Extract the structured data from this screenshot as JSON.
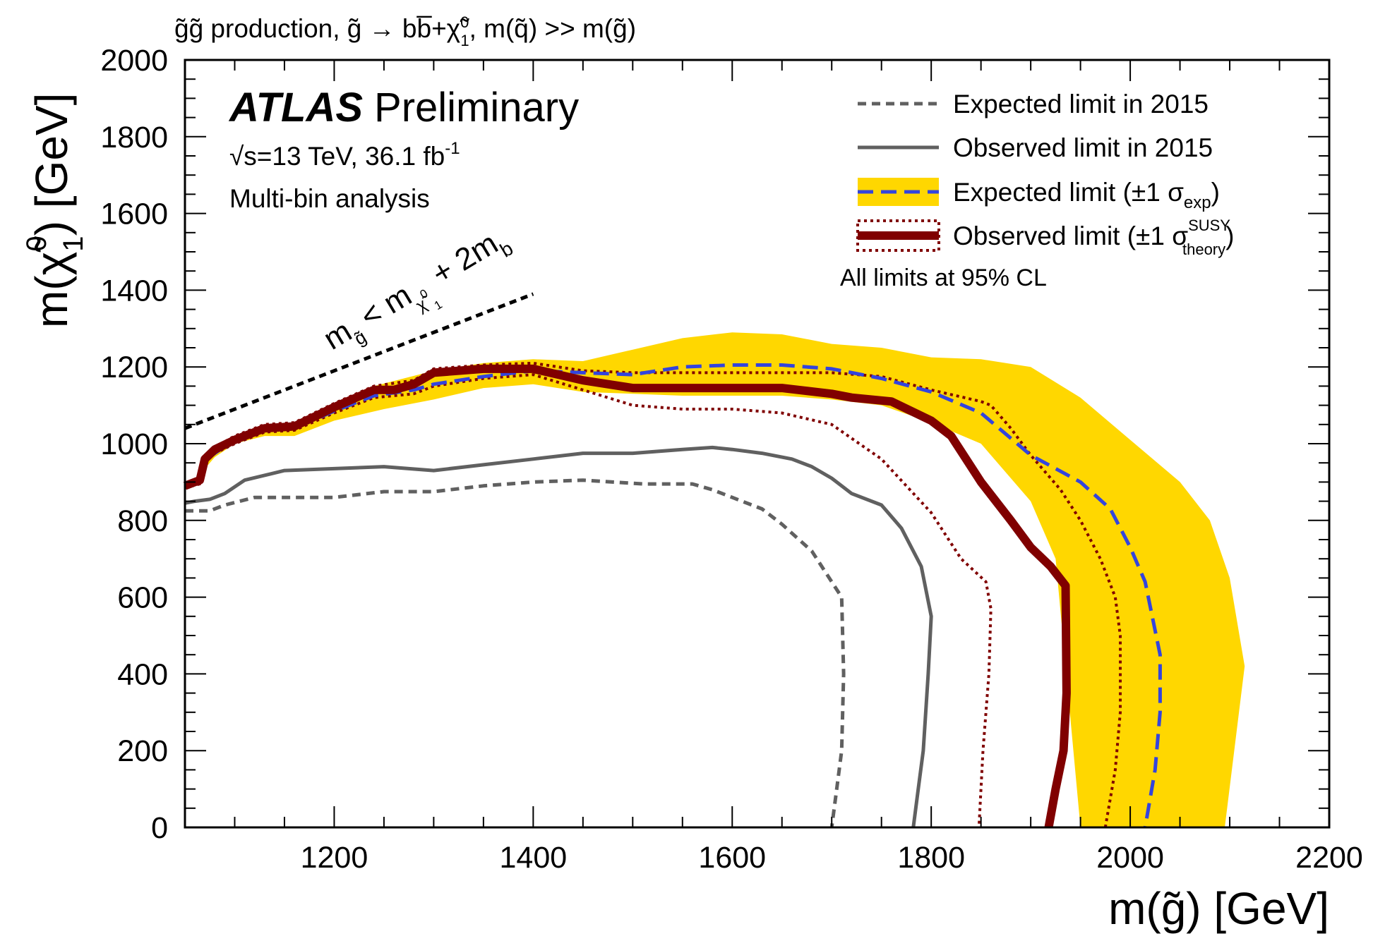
{
  "chart_data": {
    "type": "line",
    "header": {
      "pre": "g̃g̃  production, g̃ → bb̅+χ̃",
      "chi_sub": "1",
      "chi_sup": "0",
      "post": ", m(q̃) >> m(g̃)"
    },
    "experiment": "ATLAS",
    "status": "Preliminary",
    "energy_main": "√s=13 TeV, 36.1 fb",
    "energy_sup": "-1",
    "analysis": "Multi-bin analysis",
    "xlabel": "m(g̃) [GeV]",
    "ylabel": {
      "main": "m(χ̃",
      "sub": "1",
      "sup": "0",
      "tail": ") [GeV]"
    },
    "xlim": [
      1050,
      2200
    ],
    "ylim": [
      0,
      2000
    ],
    "x_ticks": [
      1200,
      1400,
      1600,
      1800,
      2000,
      2200
    ],
    "y_ticks": [
      0,
      200,
      400,
      600,
      800,
      1000,
      1200,
      1400,
      1600,
      1800,
      2000
    ],
    "kinematic": {
      "label": {
        "m": "m",
        "g": "g̃",
        "lt": "< m",
        "chi": "χ̃",
        "chi_sup": "0",
        "chi_sub": "1",
        "tail": "+ 2m",
        "b": "b"
      },
      "line": {
        "x": [
          1050,
          1400
        ],
        "y": [
          1040,
          1390
        ]
      }
    },
    "legend": {
      "items": [
        {
          "label": "Expected limit in 2015"
        },
        {
          "label": "Observed limit in 2015"
        },
        {
          "label": "Expected limit (±1 σ",
          "sub": "exp",
          "tail": ")"
        },
        {
          "label": "Observed limit (±1 σ",
          "sup": "SUSY",
          "sub": "theory",
          "tail": ")"
        }
      ],
      "note": "All limits at 95% CL",
      "position": "top-right"
    },
    "colors": {
      "band": "#ffd700",
      "expected": "#3344dd",
      "observed": "#800000",
      "obs_2015": "#606060",
      "exp_2015": "#606060",
      "kinematic": "#000000"
    },
    "series": [
      {
        "name": "Expected limit band (±1 σexp)",
        "type": "band",
        "upper": {
          "x": [
            1050,
            1065,
            1070,
            1080,
            1100,
            1130,
            1160,
            1200,
            1240,
            1300,
            1350,
            1400,
            1450,
            1500,
            1550,
            1600,
            1650,
            1700,
            1750,
            1800,
            1850,
            1900,
            1950,
            2000,
            2050,
            2080,
            2100,
            2115
          ],
          "y": [
            895,
            905,
            955,
            980,
            1010,
            1045,
            1050,
            1105,
            1150,
            1190,
            1210,
            1220,
            1215,
            1245,
            1275,
            1290,
            1285,
            1260,
            1250,
            1225,
            1220,
            1200,
            1120,
            1010,
            900,
            800,
            650,
            420
          ]
        },
        "lower": {
          "x": [
            2095,
            2050,
            2000,
            1950,
            1935,
            1925,
            1900,
            1850,
            1800,
            1750,
            1700,
            1650,
            1600,
            1550,
            1500,
            1450,
            1400,
            1350,
            1300,
            1250,
            1200,
            1160,
            1130,
            1100,
            1080,
            1070,
            1065,
            1050
          ],
          "y": [
            0,
            0,
            0,
            0,
            420,
            700,
            850,
            1000,
            1055,
            1100,
            1115,
            1125,
            1125,
            1125,
            1130,
            1135,
            1155,
            1145,
            1115,
            1090,
            1060,
            1020,
            1020,
            1000,
            965,
            935,
            895,
            880
          ]
        }
      },
      {
        "name": "Expected limit",
        "type": "line",
        "x": [
          1050,
          1065,
          1070,
          1080,
          1100,
          1130,
          1160,
          1200,
          1240,
          1280,
          1300,
          1350,
          1400,
          1450,
          1500,
          1550,
          1600,
          1650,
          1700,
          1750,
          1800,
          1850,
          1900,
          1950,
          1980,
          2000,
          2015,
          2030,
          2030,
          2025,
          2015
        ],
        "y": [
          890,
          900,
          955,
          975,
          1010,
          1035,
          1040,
          1085,
          1125,
          1140,
          1155,
          1175,
          1190,
          1185,
          1180,
          1200,
          1205,
          1205,
          1195,
          1170,
          1135,
          1080,
          970,
          900,
          830,
          730,
          640,
          450,
          300,
          150,
          0
        ]
      },
      {
        "name": "Observed limit",
        "type": "line",
        "x": [
          1050,
          1065,
          1070,
          1080,
          1100,
          1130,
          1160,
          1200,
          1240,
          1260,
          1280,
          1300,
          1350,
          1400,
          1450,
          1500,
          1550,
          1600,
          1650,
          1700,
          1720,
          1760,
          1800,
          1820,
          1850,
          1880,
          1900,
          1920,
          1935,
          1936,
          1933,
          1925,
          1918
        ],
        "y": [
          890,
          905,
          960,
          985,
          1010,
          1040,
          1045,
          1095,
          1140,
          1140,
          1155,
          1185,
          1195,
          1195,
          1165,
          1145,
          1145,
          1145,
          1145,
          1130,
          1120,
          1110,
          1060,
          1020,
          900,
          800,
          730,
          680,
          630,
          350,
          200,
          100,
          0
        ]
      },
      {
        "name": "Observed limit +1σ theory",
        "type": "line",
        "x": [
          1050,
          1065,
          1070,
          1080,
          1100,
          1130,
          1160,
          1200,
          1240,
          1280,
          1300,
          1350,
          1400,
          1450,
          1500,
          1550,
          1600,
          1650,
          1700,
          1750,
          1800,
          1850,
          1860,
          1880,
          1900,
          1930,
          1950,
          1970,
          1985,
          1990,
          1990,
          1985,
          1975
        ],
        "y": [
          895,
          910,
          965,
          990,
          1020,
          1050,
          1055,
          1105,
          1150,
          1165,
          1195,
          1205,
          1210,
          1190,
          1185,
          1185,
          1185,
          1185,
          1185,
          1175,
          1140,
          1110,
          1100,
          1040,
          970,
          880,
          800,
          700,
          600,
          500,
          300,
          150,
          0
        ]
      },
      {
        "name": "Observed limit -1σ theory",
        "type": "line",
        "x": [
          1050,
          1065,
          1070,
          1080,
          1100,
          1130,
          1160,
          1200,
          1240,
          1280,
          1300,
          1350,
          1400,
          1450,
          1500,
          1550,
          1600,
          1650,
          1700,
          1750,
          1800,
          1830,
          1855,
          1860,
          1858,
          1852,
          1848
        ],
        "y": [
          885,
          895,
          950,
          975,
          1000,
          1030,
          1035,
          1080,
          1120,
          1130,
          1150,
          1170,
          1180,
          1140,
          1100,
          1090,
          1090,
          1080,
          1050,
          960,
          820,
          700,
          640,
          570,
          400,
          200,
          0
        ]
      },
      {
        "name": "Observed limit in 2015",
        "type": "line",
        "x": [
          1050,
          1060,
          1075,
          1090,
          1110,
          1150,
          1200,
          1250,
          1300,
          1350,
          1400,
          1450,
          1500,
          1550,
          1580,
          1600,
          1630,
          1660,
          1680,
          1700,
          1720,
          1750,
          1770,
          1790,
          1800,
          1797,
          1792,
          1787,
          1782
        ],
        "y": [
          845,
          850,
          855,
          870,
          905,
          930,
          935,
          940,
          930,
          945,
          960,
          975,
          975,
          985,
          990,
          985,
          975,
          960,
          940,
          910,
          870,
          840,
          780,
          680,
          550,
          400,
          200,
          100,
          0
        ]
      },
      {
        "name": "Expected limit in 2015",
        "type": "line",
        "x": [
          1050,
          1075,
          1090,
          1120,
          1150,
          1200,
          1250,
          1300,
          1350,
          1400,
          1450,
          1480,
          1510,
          1540,
          1560,
          1580,
          1600,
          1630,
          1650,
          1680,
          1700,
          1710,
          1712,
          1710,
          1705,
          1700
        ],
        "y": [
          825,
          825,
          840,
          860,
          860,
          860,
          875,
          875,
          890,
          900,
          905,
          900,
          895,
          895,
          895,
          880,
          860,
          830,
          790,
          720,
          640,
          600,
          400,
          200,
          100,
          0
        ]
      }
    ]
  }
}
